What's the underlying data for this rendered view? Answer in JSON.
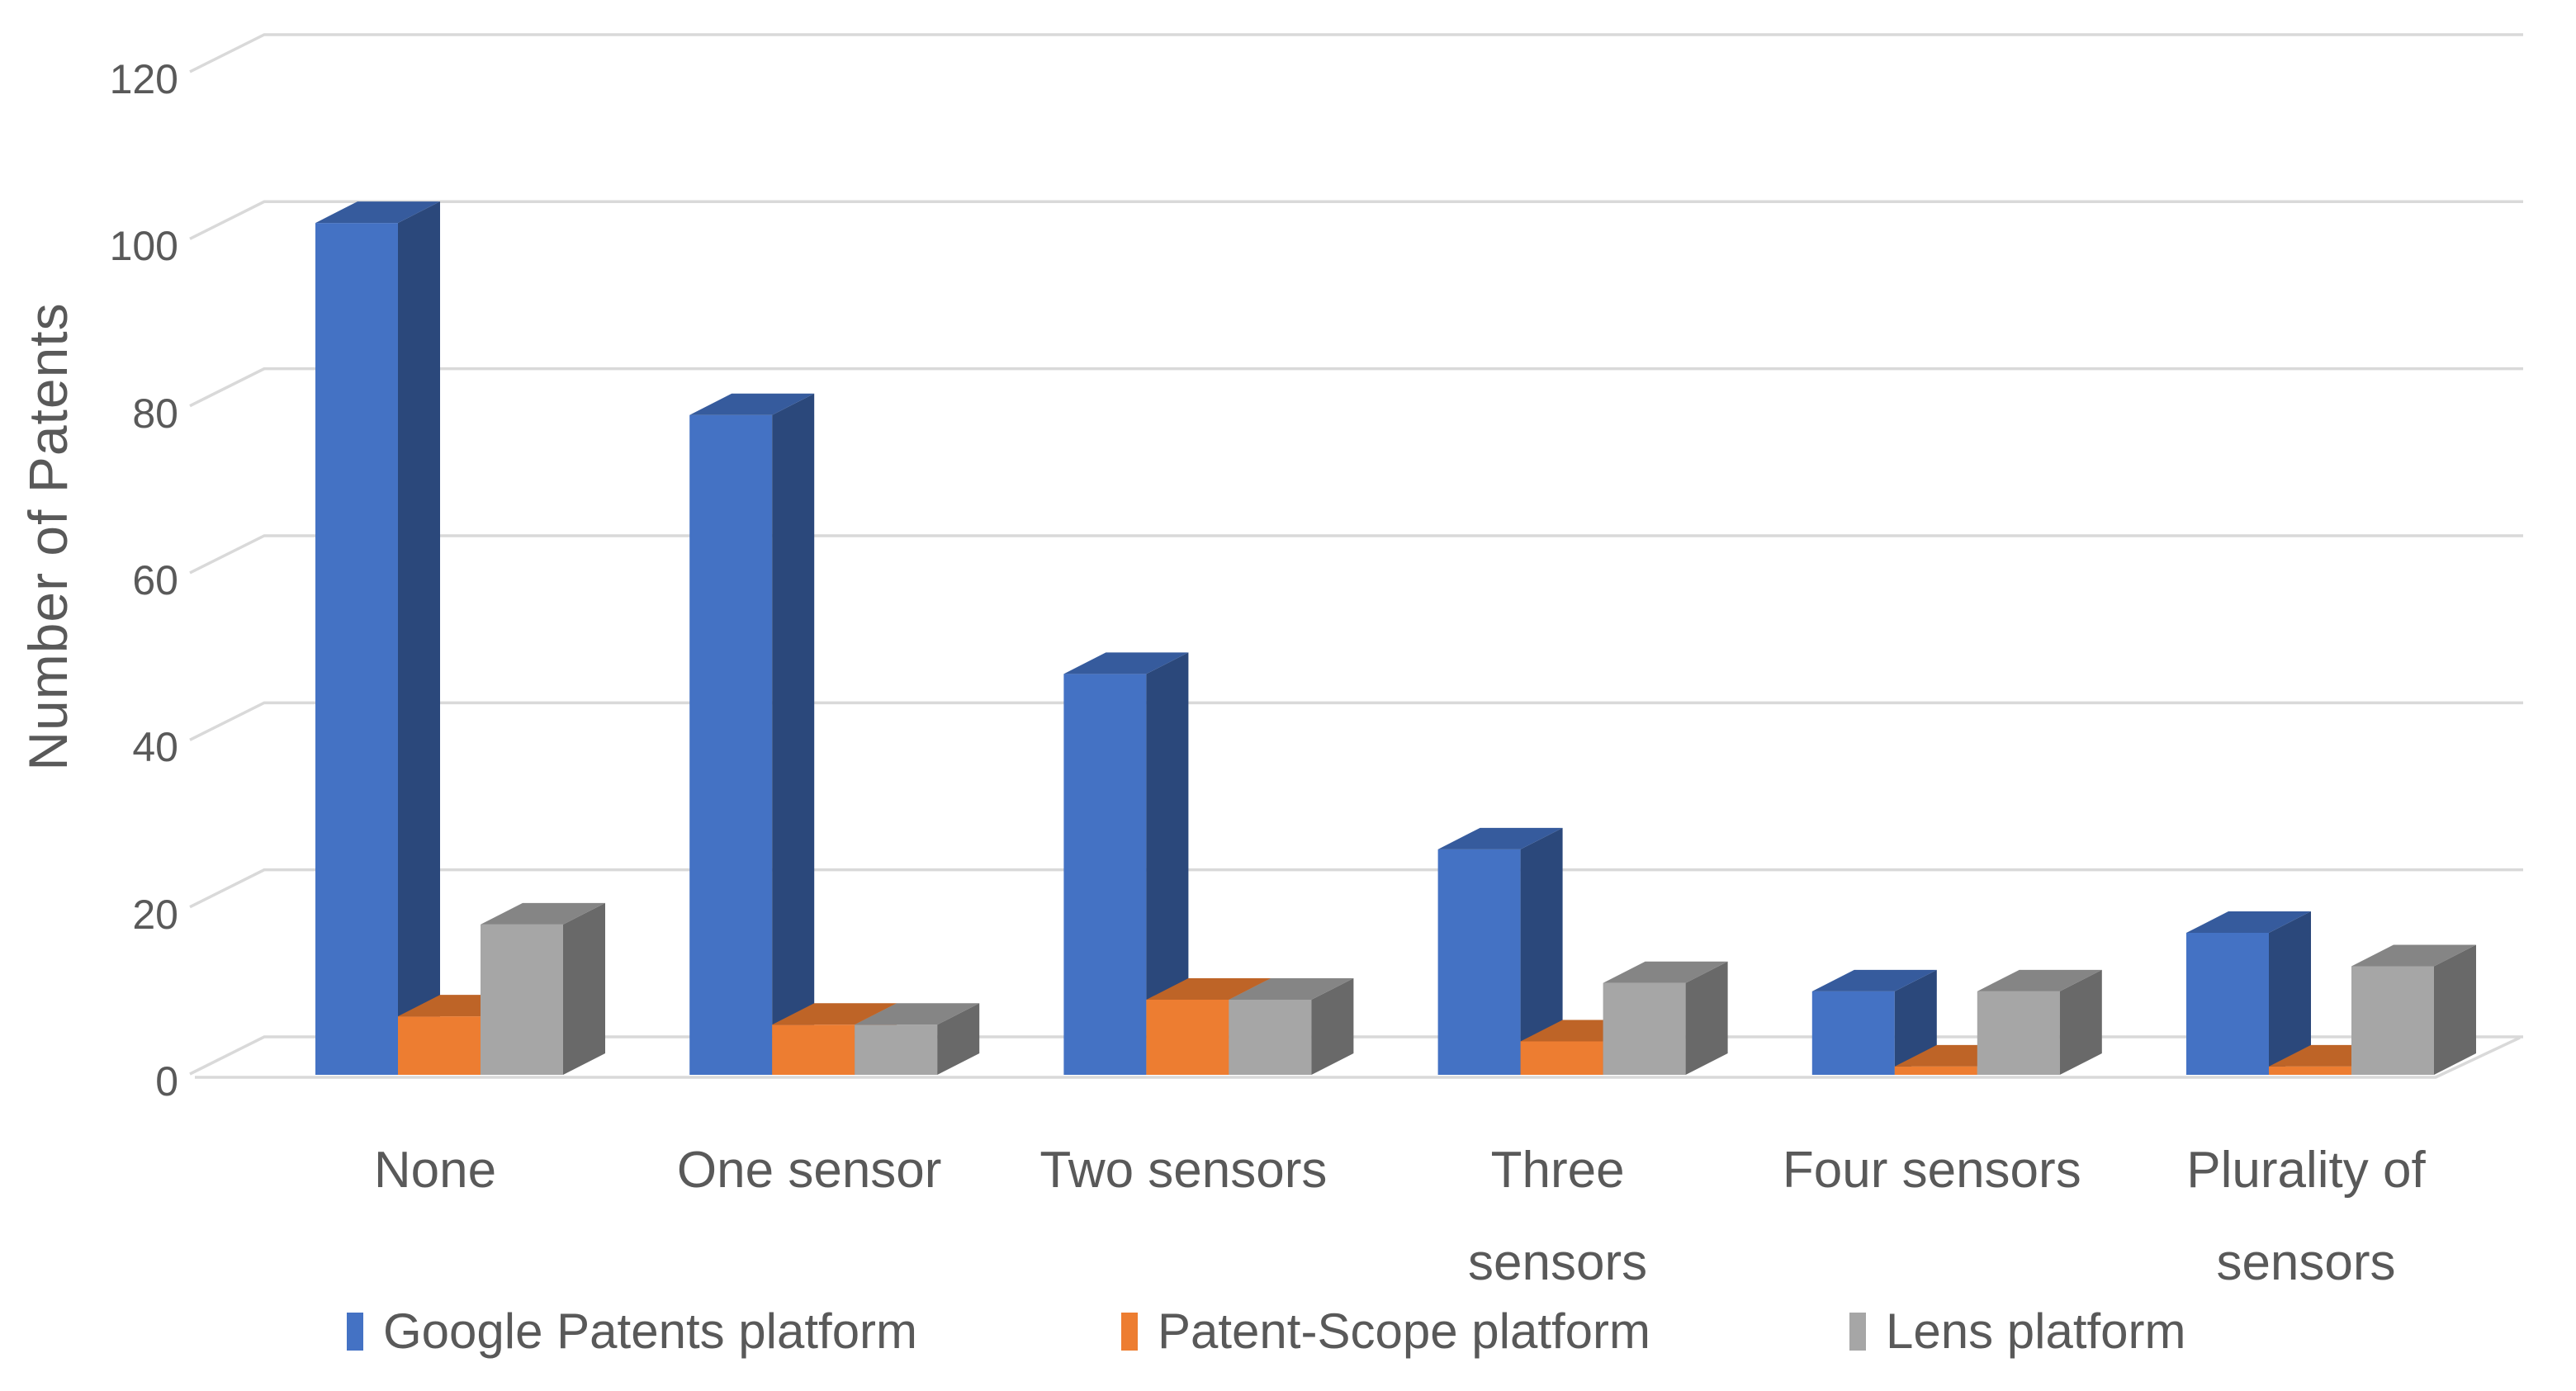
{
  "chart_data": {
    "type": "bar",
    "variant": "3d-clustered-column",
    "title": "",
    "xlabel": "",
    "ylabel": "Number of Patents",
    "categories": [
      "None",
      "One sensor",
      "Two sensors",
      "Three sensors",
      "Four sensors",
      "Plurality of sensors"
    ],
    "series": [
      {
        "name": "Google Patents platform",
        "color": "#4472C4",
        "values": [
          102,
          79,
          48,
          27,
          10,
          17
        ]
      },
      {
        "name": "Patent-Scope platform",
        "color": "#ED7D31",
        "values": [
          7,
          6,
          9,
          4,
          1,
          1
        ]
      },
      {
        "name": "Lens platform",
        "color": "#A6A6A6",
        "values": [
          18,
          6,
          9,
          11,
          10,
          13
        ]
      }
    ],
    "y_ticks": [
      0,
      20,
      40,
      60,
      80,
      100,
      120
    ],
    "ylim": [
      0,
      120
    ],
    "grid": true,
    "legend_position": "bottom"
  },
  "colors": {
    "grid": "#D9D9D9",
    "text": "#595959",
    "background": "#FFFFFF"
  }
}
